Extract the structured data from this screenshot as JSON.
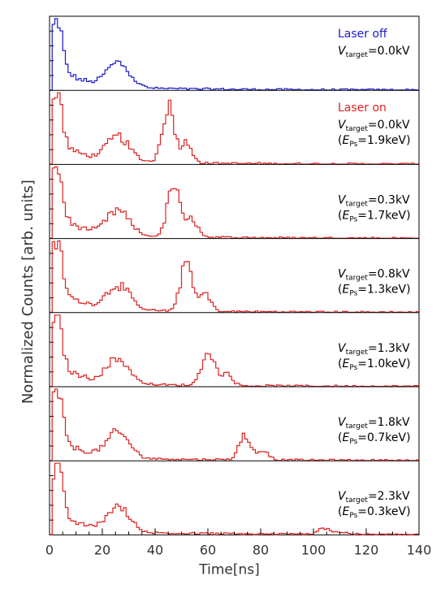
{
  "chart_data": {
    "type": "line",
    "style": "step-histogram",
    "xlabel": "Time[ns]",
    "ylabel": "Normalized Counts [arb. units]",
    "xlim": [
      0,
      140
    ],
    "x_ticks": [
      0,
      20,
      40,
      60,
      80,
      100,
      120,
      140
    ],
    "grid": false,
    "colors": {
      "laser_off": "#1a1acc",
      "laser_on": "#dd2222",
      "axis": "#000000"
    },
    "legend_texts": {
      "laser_off": "Laser off",
      "laser_on": "Laser on"
    },
    "panels": [
      {
        "name": "Laser off",
        "color": "laser_off",
        "show_legend": true,
        "vtarget": "=0.0kV",
        "eps": "",
        "peak_x": null,
        "peak_h": 0
      },
      {
        "name": "Laser on",
        "color": "laser_on",
        "show_legend": true,
        "vtarget": "=0.0kV",
        "eps": "=1.9keV)",
        "peak_x": 45,
        "peak_h": 0.86
      },
      {
        "name": "",
        "color": "laser_on",
        "show_legend": false,
        "vtarget": "=0.3kV",
        "eps": "=1.7keV)",
        "peak_x": 47,
        "peak_h": 0.78
      },
      {
        "name": "",
        "color": "laser_on",
        "show_legend": false,
        "vtarget": "=0.8kV",
        "eps": "=1.3keV)",
        "peak_x": 52,
        "peak_h": 0.74
      },
      {
        "name": "",
        "color": "laser_on",
        "show_legend": false,
        "vtarget": "=1.3kV",
        "eps": "=1.0keV)",
        "peak_x": 60,
        "peak_h": 0.56
      },
      {
        "name": "",
        "color": "laser_on",
        "show_legend": false,
        "vtarget": "=1.8kV",
        "eps": "=0.7keV)",
        "peak_x": 74,
        "peak_h": 0.36
      },
      {
        "name": "",
        "color": "laser_on",
        "show_legend": false,
        "vtarget": "=2.3kV",
        "eps": "=0.3keV)",
        "peak_x": 104,
        "peak_h": 0.1
      }
    ],
    "label_parts": {
      "v": "V",
      "target_sub": "target",
      "e_open": "(",
      "e": "E",
      "ps_sub": "Ps"
    }
  }
}
